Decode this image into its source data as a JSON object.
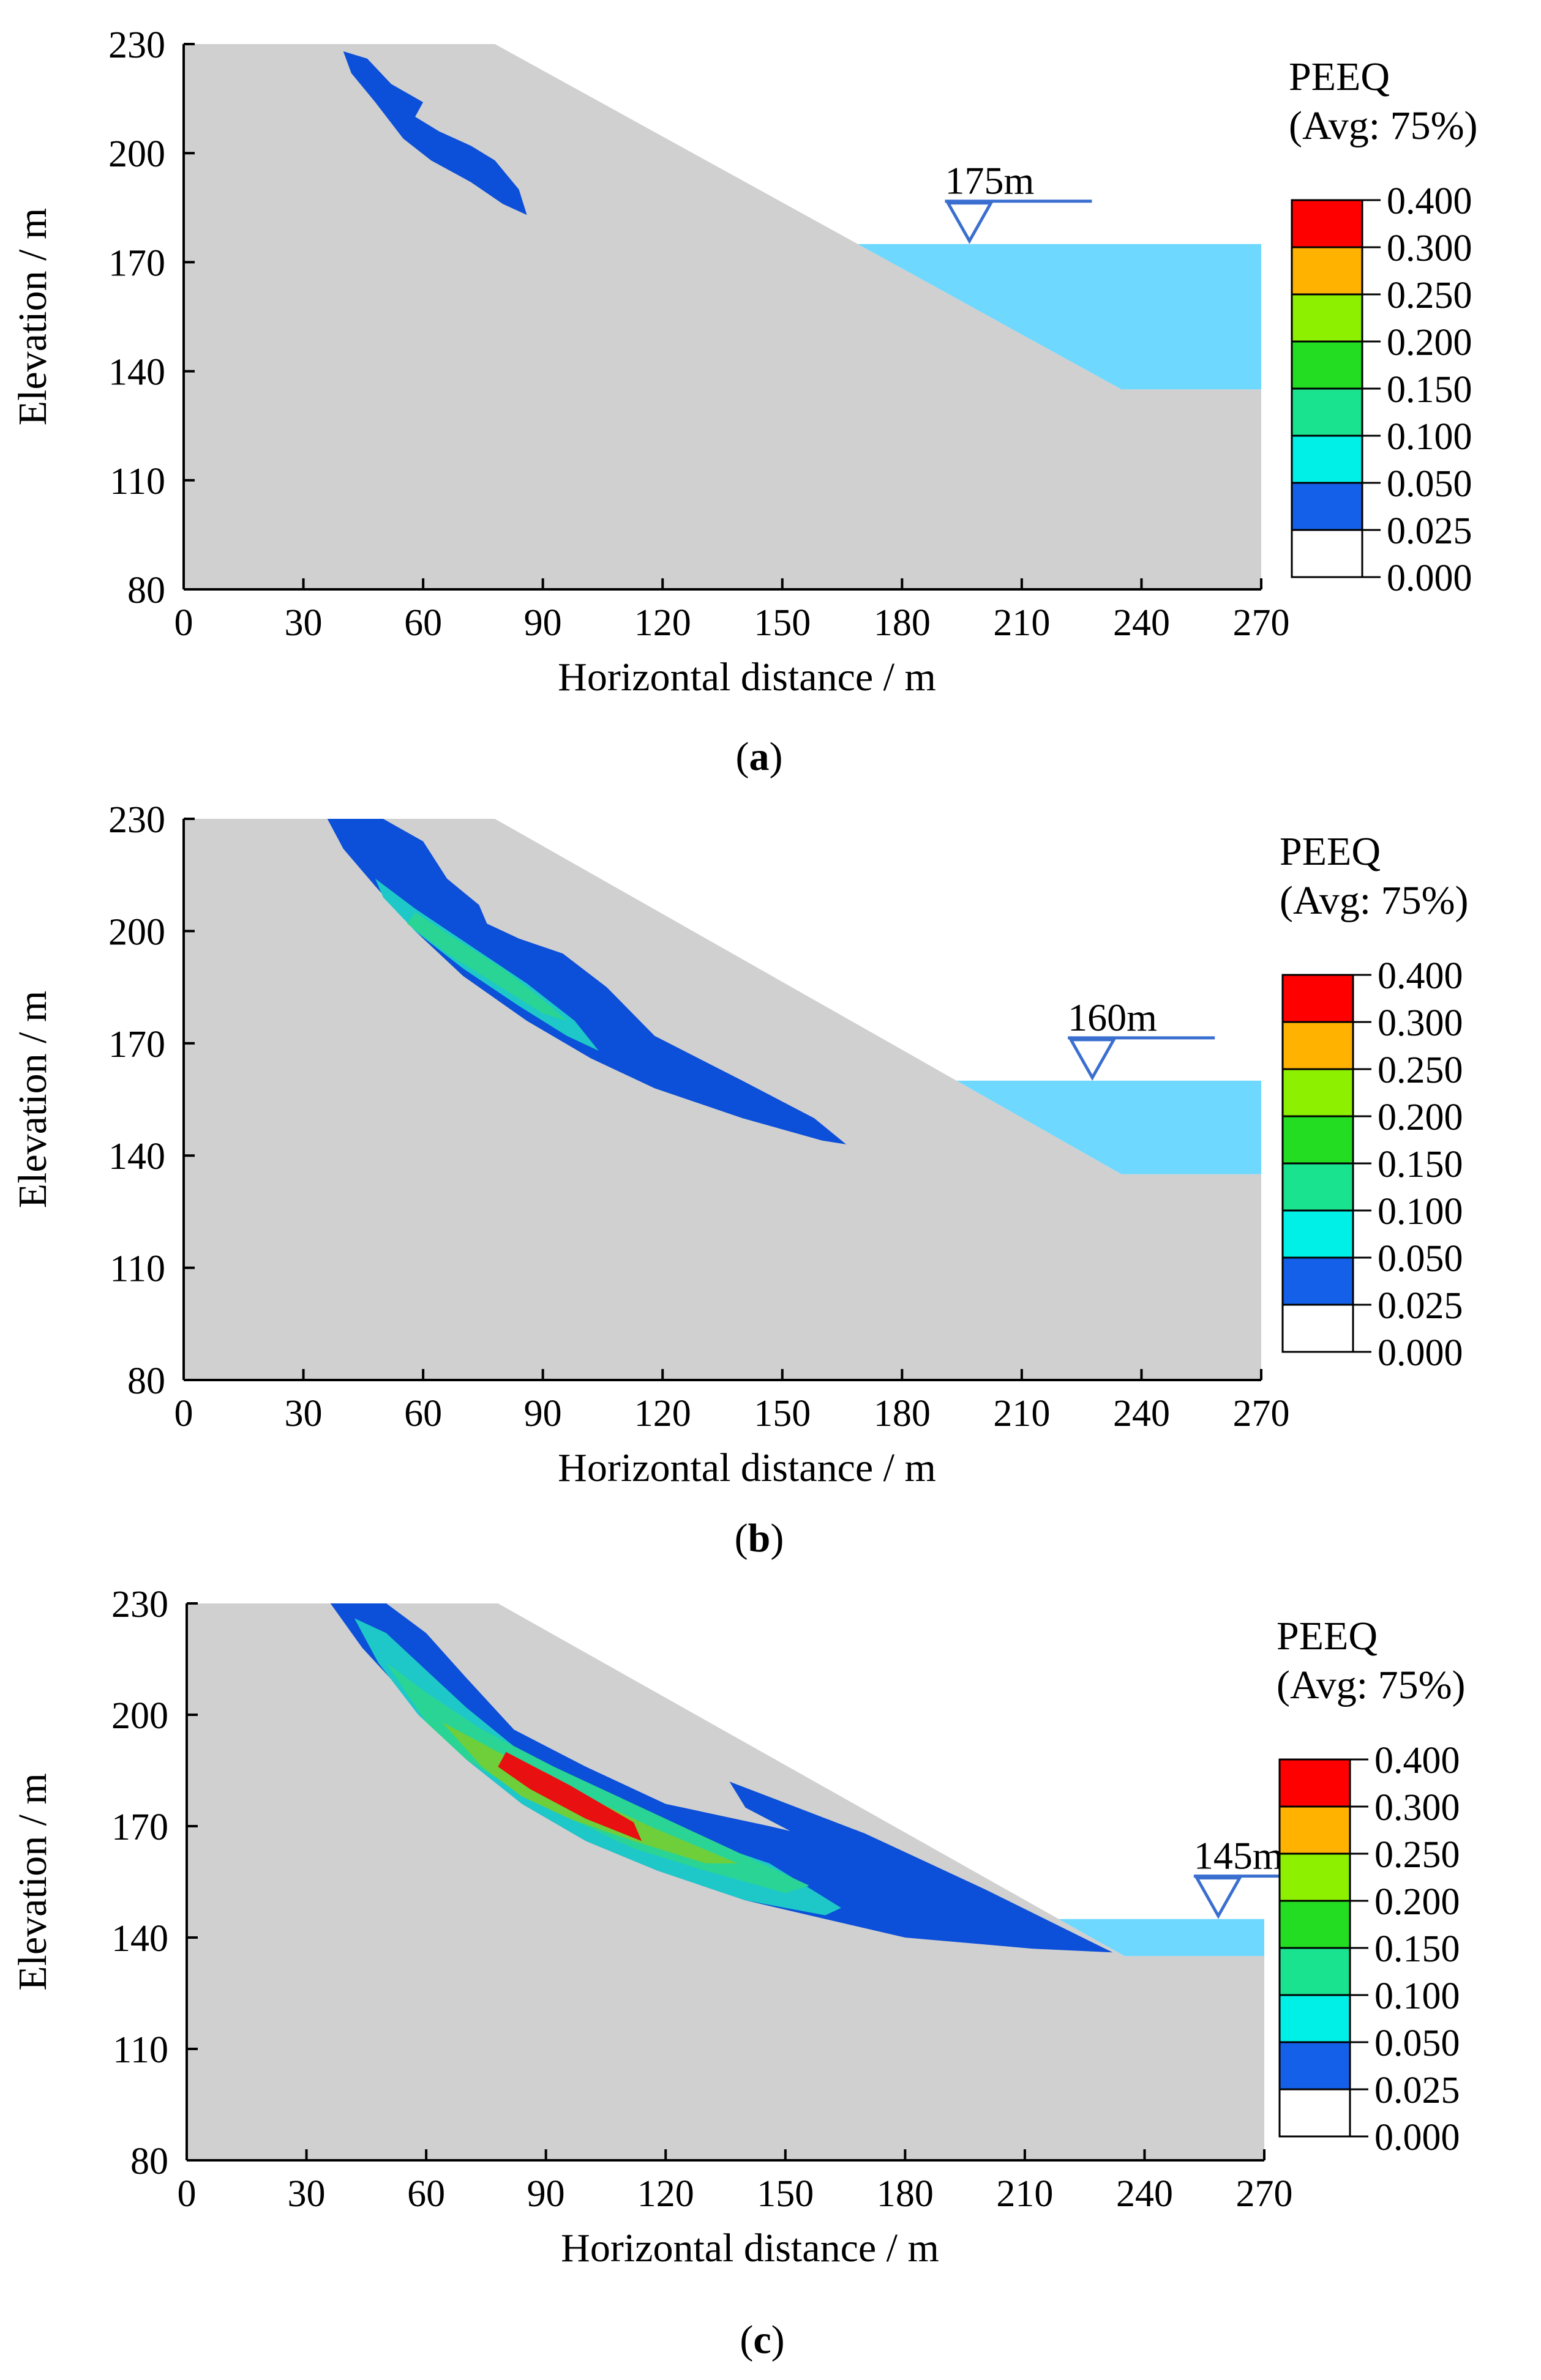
{
  "chart_data": [
    {
      "type": "contour",
      "panel_label": "a",
      "xlabel": "Horizontal distance / m",
      "ylabel": "Elevation / m",
      "xlim": [
        0,
        270
      ],
      "ylim": [
        80,
        230
      ],
      "xticks": [
        0,
        30,
        60,
        90,
        120,
        150,
        180,
        210,
        240,
        270
      ],
      "yticks": [
        80,
        110,
        140,
        170,
        200,
        230
      ],
      "slope_profile": [
        [
          0,
          230
        ],
        [
          78,
          230
        ],
        [
          235,
          135
        ],
        [
          270,
          135
        ]
      ],
      "water_level": 175,
      "water_level_label": "175m",
      "legend": {
        "title": "PEEQ",
        "subtitle": "(Avg: 75%)",
        "values": [
          "0.400",
          "0.300",
          "0.250",
          "0.200",
          "0.150",
          "0.100",
          "0.050",
          "0.025",
          "0.000"
        ]
      }
    },
    {
      "type": "contour",
      "panel_label": "b",
      "xlabel": "Horizontal distance / m",
      "ylabel": "Elevation / m",
      "xlim": [
        0,
        270
      ],
      "ylim": [
        80,
        230
      ],
      "xticks": [
        0,
        30,
        60,
        90,
        120,
        150,
        180,
        210,
        240,
        270
      ],
      "yticks": [
        80,
        110,
        140,
        170,
        200,
        230
      ],
      "slope_profile": [
        [
          0,
          230
        ],
        [
          78,
          230
        ],
        [
          235,
          135
        ],
        [
          270,
          135
        ]
      ],
      "water_level": 160,
      "water_level_label": "160m",
      "legend": {
        "title": "PEEQ",
        "subtitle": "(Avg: 75%)",
        "values": [
          "0.400",
          "0.300",
          "0.250",
          "0.200",
          "0.150",
          "0.100",
          "0.050",
          "0.025",
          "0.000"
        ]
      }
    },
    {
      "type": "contour",
      "panel_label": "c",
      "xlabel": "Horizontal distance / m",
      "ylabel": "Elevation / m",
      "xlim": [
        0,
        270
      ],
      "ylim": [
        80,
        230
      ],
      "xticks": [
        0,
        30,
        60,
        90,
        120,
        150,
        180,
        210,
        240,
        270
      ],
      "yticks": [
        80,
        110,
        140,
        170,
        200,
        230
      ],
      "slope_profile": [
        [
          0,
          230
        ],
        [
          78,
          230
        ],
        [
          235,
          135
        ],
        [
          270,
          135
        ]
      ],
      "water_level": 145,
      "water_level_label": "145m",
      "legend": {
        "title": "PEEQ",
        "subtitle": "(Avg: 75%)",
        "values": [
          "0.400",
          "0.300",
          "0.250",
          "0.200",
          "0.150",
          "0.100",
          "0.050",
          "0.025",
          "0.000"
        ]
      }
    }
  ],
  "legend_colors": [
    "#ff0000",
    "#ffb300",
    "#8cf000",
    "#22dd22",
    "#19e38f",
    "#00f0e8",
    "#1560e8",
    "#ffffff"
  ],
  "colors": {
    "soil": "#d0d0d0",
    "water": "#6ed8ff",
    "zone_025": "#0c4fd8",
    "zone_050": "#1ec8c8",
    "zone_100": "#2ad494",
    "zone_200": "#6fcf3a",
    "zone_300": "#e81010",
    "marker": "#3a6fd0"
  }
}
